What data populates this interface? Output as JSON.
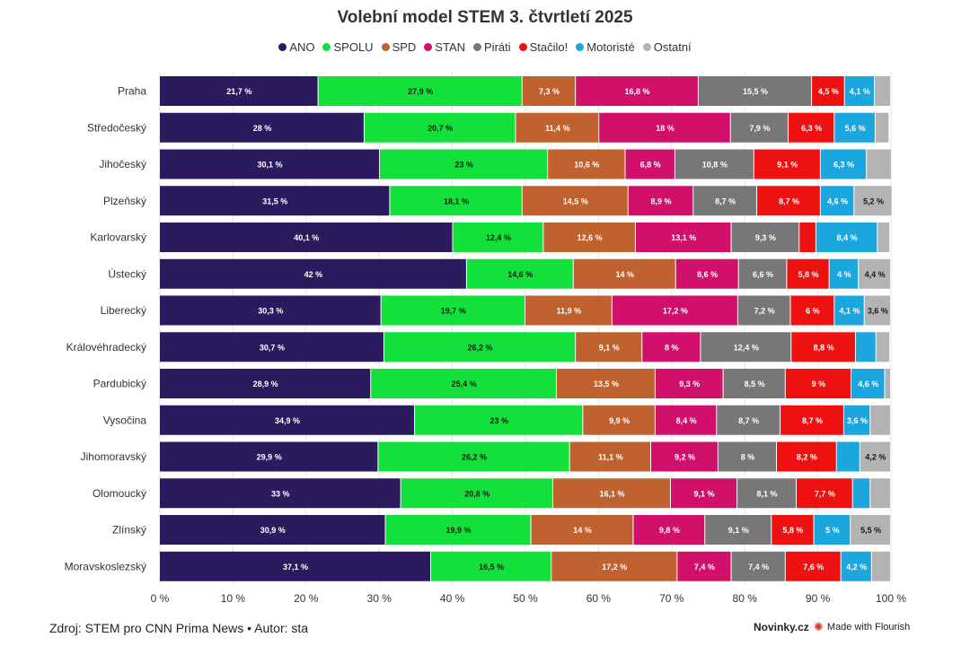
{
  "chart_data": {
    "type": "bar",
    "orientation": "horizontal",
    "stacked": true,
    "title": "Volební model STEM 3. čtvrtletí 2025",
    "xlim": [
      0,
      100
    ],
    "x_ticks": [
      "0 %",
      "10 %",
      "20 %",
      "30 %",
      "40 %",
      "50 %",
      "60 %",
      "70 %",
      "80 %",
      "90 %",
      "100 %"
    ],
    "grid": true,
    "legend_position": "top-center",
    "categories": [
      "Praha",
      "Středočeský",
      "Jihočeský",
      "Plzeňský",
      "Karlovarský",
      "Ústecký",
      "Liberecký",
      "Královéhradecký",
      "Pardubický",
      "Vysočina",
      "Jihomoravský",
      "Olomoucký",
      "Zlínský",
      "Moravskoslezský"
    ],
    "series": [
      {
        "name": "ANO",
        "color": "#2b1a5e",
        "values": [
          21.7,
          28,
          30.1,
          31.5,
          40.1,
          42,
          30.3,
          30.7,
          28.9,
          34.9,
          29.9,
          33,
          30.9,
          37.1
        ],
        "labels": [
          "21,7 %",
          "28 %",
          "30,1 %",
          "31,5 %",
          "40,1 %",
          "42 %",
          "30,3 %",
          "30,7 %",
          "28,9 %",
          "34,9 %",
          "29,9 %",
          "33 %",
          "30,9 %",
          "37,1 %"
        ]
      },
      {
        "name": "SPOLU",
        "color": "#14e03c",
        "values": [
          27.9,
          20.7,
          23,
          18.1,
          12.4,
          14.6,
          19.7,
          26.2,
          25.4,
          23,
          26.2,
          20.8,
          19.9,
          16.5
        ],
        "labels": [
          "27,9 %",
          "20,7 %",
          "23 %",
          "18,1 %",
          "12,4 %",
          "14,6 %",
          "19,7 %",
          "26,2 %",
          "25,4 %",
          "23 %",
          "26,2 %",
          "20,8 %",
          "19,9 %",
          "16,5 %"
        ]
      },
      {
        "name": "SPD",
        "color": "#c0622f",
        "values": [
          7.3,
          11.4,
          10.6,
          14.5,
          12.6,
          14,
          11.9,
          9.1,
          13.5,
          9.9,
          11.1,
          16.1,
          14,
          17.2
        ],
        "labels": [
          "7,3 %",
          "11,4 %",
          "10,6 %",
          "14,5 %",
          "12,6 %",
          "14 %",
          "11,9 %",
          "9,1 %",
          "13,5 %",
          "9,9 %",
          "11,1 %",
          "16,1 %",
          "14 %",
          "17,2 %"
        ]
      },
      {
        "name": "STAN",
        "color": "#d1106c",
        "values": [
          16.8,
          18,
          6.8,
          8.9,
          13.1,
          8.6,
          17.2,
          8,
          9.3,
          8.4,
          9.2,
          9.1,
          9.8,
          7.4
        ],
        "labels": [
          "16,8 %",
          "18 %",
          "6,8 %",
          "8,9 %",
          "13,1 %",
          "8,6 %",
          "17,2 %",
          "8 %",
          "9,3 %",
          "8,4 %",
          "9,2 %",
          "9,1 %",
          "9,8 %",
          "7,4 %"
        ]
      },
      {
        "name": "Piráti",
        "color": "#777777",
        "values": [
          15.5,
          7.9,
          10.8,
          8.7,
          9.3,
          6.6,
          7.2,
          12.4,
          8.5,
          8.7,
          8,
          8.1,
          9.1,
          7.4
        ],
        "labels": [
          "15,5 %",
          "7,9 %",
          "10,8 %",
          "8,7 %",
          "9,3 %",
          "6,6 %",
          "7,2 %",
          "12,4 %",
          "8,5 %",
          "8,7 %",
          "8 %",
          "8,1 %",
          "9,1 %",
          "7,4 %"
        ]
      },
      {
        "name": "Stačilo!",
        "color": "#ee1111",
        "values": [
          4.5,
          6.3,
          9.1,
          8.7,
          2.3,
          5.8,
          6,
          8.8,
          9,
          8.7,
          8.2,
          7.7,
          5.8,
          7.6
        ],
        "labels": [
          "4,5 %",
          "6,3 %",
          "9,1 %",
          "8,7 %",
          "",
          "5,8 %",
          "6 %",
          "8,8 %",
          "9 %",
          "8,7 %",
          "8,2 %",
          "7,7 %",
          "5,8 %",
          "7,6 %"
        ]
      },
      {
        "name": "Motoristé",
        "color": "#1ca6de",
        "values": [
          4.1,
          5.6,
          6.3,
          4.6,
          8.4,
          4,
          4.1,
          2.8,
          4.6,
          3.6,
          3.2,
          2.4,
          5,
          4.2
        ],
        "labels": [
          "4,1 %",
          "5,6 %",
          "6,3 %",
          "4,6 %",
          "8,4 %",
          "4 %",
          "4,1 %",
          "",
          "4,6 %",
          "3,6 %",
          "",
          "",
          "5 %",
          "4,2 %"
        ]
      },
      {
        "name": "Ostatní",
        "color": "#b3b3b3",
        "values": [
          2.2,
          1.9,
          3.4,
          5.2,
          1.7,
          4.4,
          3.6,
          1.9,
          0.8,
          2.8,
          4.2,
          2.8,
          5.5,
          2.6
        ],
        "labels": [
          "",
          "",
          "",
          "5,2 %",
          "",
          "4,4 %",
          "3,6 %",
          "",
          "",
          "",
          "4,2 %",
          "",
          "5,5 %",
          ""
        ]
      }
    ]
  },
  "footer": {
    "source": "Zdroj: STEM pro CNN Prima News • Autor: sta",
    "brand": "Novinky.cz",
    "flourish": "Made with Flourish"
  }
}
